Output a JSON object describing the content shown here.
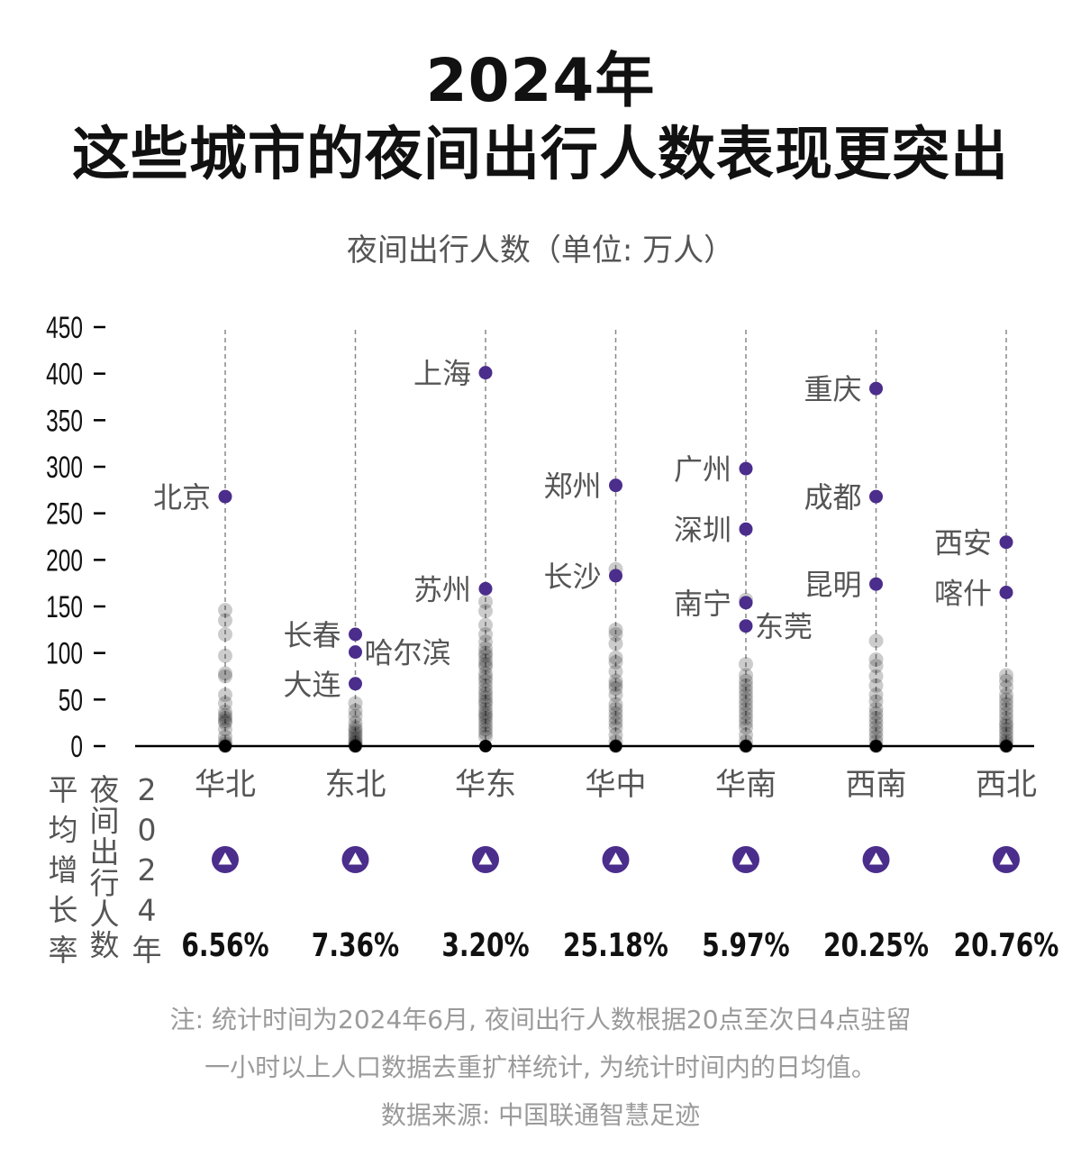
{
  "title_line1": "2024年",
  "title_line2": "这些城市的夜间出行人数表现更突出",
  "unit_label": "夜间出行人数（单位: 万人）",
  "row_label_growth": "平均增长率",
  "row_label_metric": "夜间出行人数",
  "row_label_year": "2024年",
  "colors": {
    "highlight": "#4b2d8c",
    "background_dots": "#000000",
    "axis": "#000000",
    "guide": "#888888",
    "note": "#9a9a9a"
  },
  "growth_icon": "up-triangle-icon",
  "chart_data": {
    "type": "scatter",
    "ylim": [
      0,
      450
    ],
    "yticks": [
      0,
      50,
      100,
      150,
      200,
      250,
      300,
      350,
      400,
      450
    ],
    "categories": [
      "华北",
      "东北",
      "华东",
      "华中",
      "华南",
      "西南",
      "西北"
    ],
    "highlighted": [
      {
        "region": "华北",
        "city": "北京",
        "value": 268,
        "label_side": "left"
      },
      {
        "region": "东北",
        "city": "长春",
        "value": 120,
        "label_side": "left"
      },
      {
        "region": "东北",
        "city": "哈尔滨",
        "value": 101,
        "label_side": "right"
      },
      {
        "region": "东北",
        "city": "大连",
        "value": 67,
        "label_side": "left"
      },
      {
        "region": "华东",
        "city": "上海",
        "value": 401,
        "label_side": "left"
      },
      {
        "region": "华东",
        "city": "苏州",
        "value": 169,
        "label_side": "left"
      },
      {
        "region": "华中",
        "city": "郑州",
        "value": 280,
        "label_side": "left"
      },
      {
        "region": "华中",
        "city": "长沙",
        "value": 183,
        "label_side": "left"
      },
      {
        "region": "华南",
        "city": "广州",
        "value": 298,
        "label_side": "left"
      },
      {
        "region": "华南",
        "city": "深圳",
        "value": 233,
        "label_side": "left"
      },
      {
        "region": "华南",
        "city": "南宁",
        "value": 154,
        "label_side": "left"
      },
      {
        "region": "华南",
        "city": "东莞",
        "value": 129,
        "label_side": "right"
      },
      {
        "region": "西南",
        "city": "重庆",
        "value": 384,
        "label_side": "left"
      },
      {
        "region": "西南",
        "city": "成都",
        "value": 268,
        "label_side": "left"
      },
      {
        "region": "西南",
        "city": "昆明",
        "value": 174,
        "label_side": "left"
      },
      {
        "region": "西北",
        "city": "西安",
        "value": 219,
        "label_side": "left"
      },
      {
        "region": "西北",
        "city": "喀什",
        "value": 165,
        "label_side": "left"
      }
    ],
    "other_cities": {
      "华北": [
        146,
        135,
        120,
        97,
        78,
        75,
        55,
        46,
        37,
        33,
        30,
        27,
        25,
        18,
        10,
        5,
        2,
        0
      ],
      "东北": [
        46,
        38,
        32,
        25,
        20,
        17,
        14,
        11,
        8,
        5,
        3,
        1,
        0
      ],
      "华东": [
        155,
        145,
        130,
        120,
        112,
        105,
        100,
        97,
        92,
        88,
        85,
        78,
        74,
        70,
        65,
        60,
        56,
        52,
        48,
        45,
        40,
        36,
        33,
        30,
        26,
        22,
        18,
        14,
        10
      ],
      "华中": [
        190,
        125,
        120,
        110,
        95,
        90,
        80,
        70,
        66,
        62,
        55,
        45,
        40,
        35,
        30,
        25,
        20,
        12,
        5,
        0
      ],
      "华南": [
        157,
        88,
        76,
        70,
        65,
        60,
        55,
        50,
        45,
        40,
        35,
        30,
        25,
        20,
        12,
        5,
        0
      ],
      "西南": [
        113,
        93,
        86,
        75,
        65,
        55,
        48,
        40,
        35,
        30,
        25,
        20,
        15,
        10,
        5,
        0
      ],
      "西北": [
        76,
        70,
        63,
        55,
        50,
        45,
        40,
        35,
        30,
        25,
        22,
        18,
        14,
        10,
        6,
        3,
        0
      ]
    },
    "growth_rates": [
      "6.56%",
      "7.36%",
      "3.20%",
      "25.18%",
      "5.97%",
      "20.25%",
      "20.76%"
    ]
  },
  "note_line1": "注: 统计时间为2024年6月, 夜间出行人数根据20点至次日4点驻留",
  "note_line2": "一小时以上人口数据去重扩样统计, 为统计时间内的日均值。",
  "note_line3": "数据来源: 中国联通智慧足迹"
}
